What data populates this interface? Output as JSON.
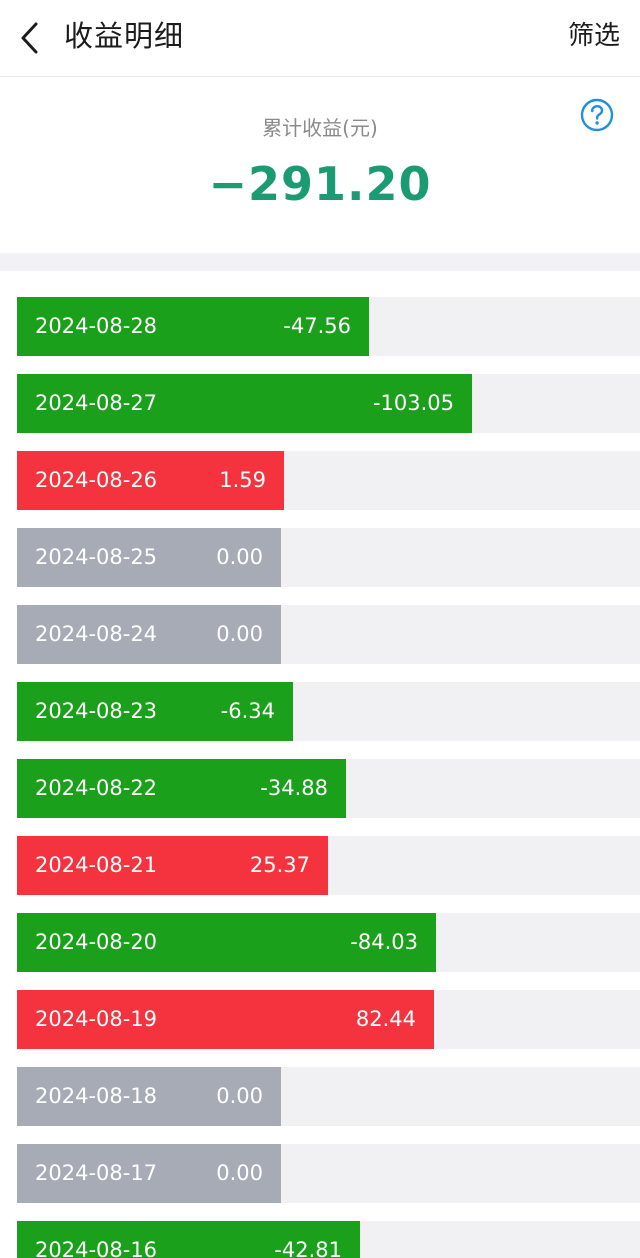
{
  "header": {
    "title": "收益明细",
    "filter_label": "筛选",
    "back_icon": "chevron-left-icon"
  },
  "summary": {
    "label": "累计收益(元)",
    "value": "−291.20",
    "help_icon": "question-circle-icon"
  },
  "colors": {
    "gain": "#f5333f",
    "loss": "#1ba01b",
    "neutral": "#a7abb5",
    "total": "#1a9b72",
    "help": "#1e8fe1"
  },
  "records": [
    {
      "date": "2024-08-28",
      "amount": "-47.56"
    },
    {
      "date": "2024-08-27",
      "amount": "-103.05"
    },
    {
      "date": "2024-08-26",
      "amount": "1.59"
    },
    {
      "date": "2024-08-25",
      "amount": "0.00"
    },
    {
      "date": "2024-08-24",
      "amount": "0.00"
    },
    {
      "date": "2024-08-23",
      "amount": "-6.34"
    },
    {
      "date": "2024-08-22",
      "amount": "-34.88"
    },
    {
      "date": "2024-08-21",
      "amount": "25.37"
    },
    {
      "date": "2024-08-20",
      "amount": "-84.03"
    },
    {
      "date": "2024-08-19",
      "amount": "82.44"
    },
    {
      "date": "2024-08-18",
      "amount": "0.00"
    },
    {
      "date": "2024-08-17",
      "amount": "0.00"
    },
    {
      "date": "2024-08-16",
      "amount": "-42.81"
    }
  ]
}
